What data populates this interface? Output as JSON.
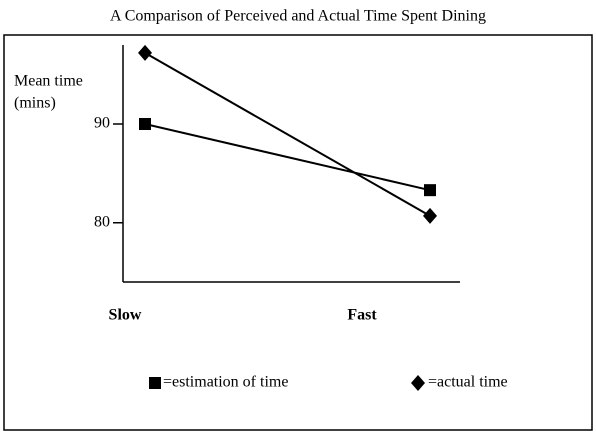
{
  "chart_data": {
    "type": "line",
    "title": "A Comparison of Perceived and Actual Time Spent Dining",
    "y_label": [
      "Mean time",
      "(mins)"
    ],
    "categories": [
      "Slow",
      "Fast"
    ],
    "series": [
      {
        "name": "=estimation of time",
        "color": "#000000",
        "marker": "square",
        "values": [
          90,
          83.3
        ]
      },
      {
        "name": "=actual time",
        "color": "#000000",
        "marker": "diamond",
        "values": [
          97.2,
          80.7
        ]
      }
    ],
    "ylim": [
      74,
      98
    ],
    "yticks": [
      80,
      90
    ],
    "grid": false
  }
}
